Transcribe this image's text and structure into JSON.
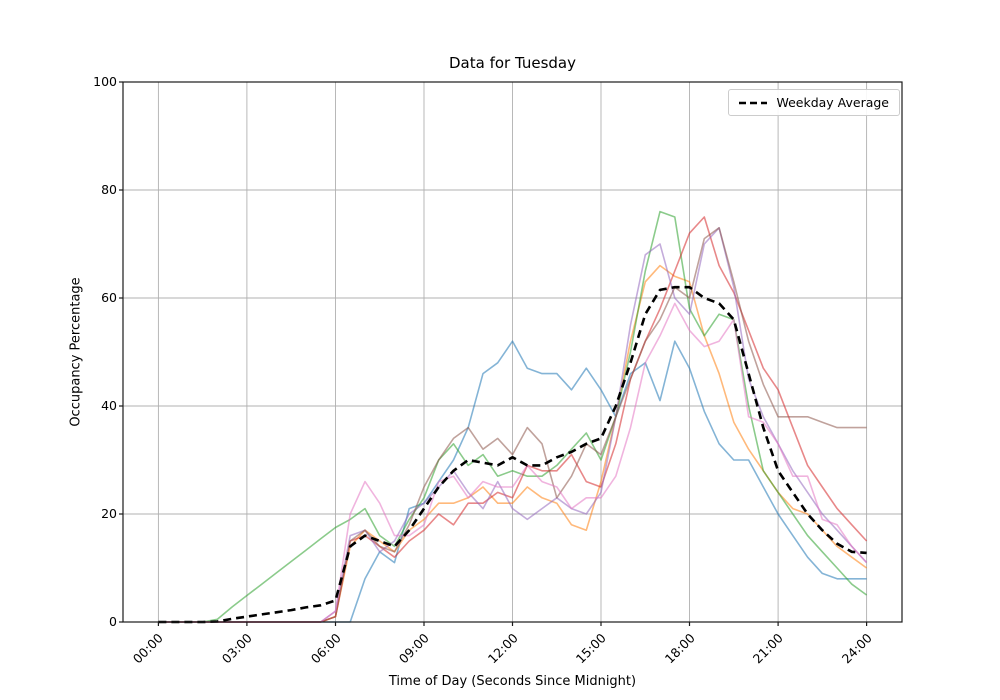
{
  "figure": {
    "title": "Data for Tuesday",
    "xlabel": "Time of Day (Seconds Since Midnight)",
    "ylabel": "Occupancy Percentage",
    "legend_label": "Weekday Average"
  },
  "colors": {
    "grid": "#b0b0b0",
    "spine": "#1a1a1a",
    "legend_border": "#cccccc",
    "average_line": "#000000"
  },
  "chart_data": {
    "type": "line",
    "title": "Data for Tuesday",
    "xlabel": "Time of Day (Seconds Since Midnight)",
    "ylabel": "Occupancy Percentage",
    "grid": true,
    "legend_position": "upper right",
    "legend_entries": [
      "Weekday Average"
    ],
    "ylim": [
      0,
      100
    ],
    "xlim_hours": [
      -1.2,
      25.2
    ],
    "y_ticks": [
      0,
      20,
      40,
      60,
      80,
      100
    ],
    "x_tick_hours": [
      0,
      3,
      6,
      9,
      12,
      15,
      18,
      21,
      24
    ],
    "x_tick_labels": [
      "00:00",
      "03:00",
      "06:00",
      "09:00",
      "12:00",
      "15:00",
      "18:00",
      "21:00",
      "24:00"
    ],
    "x_hours": [
      0,
      0.5,
      1,
      1.5,
      2,
      2.5,
      3,
      3.5,
      4,
      4.5,
      5,
      5.5,
      6,
      6.5,
      7,
      7.5,
      8,
      8.5,
      9,
      9.5,
      10,
      10.5,
      11,
      11.5,
      12,
      12.5,
      13,
      13.5,
      14,
      14.5,
      15,
      15.5,
      16,
      16.5,
      17,
      17.5,
      18,
      18.5,
      19,
      19.5,
      20,
      20.5,
      21,
      21.5,
      22,
      22.5,
      23,
      23.5,
      24
    ],
    "series": [
      {
        "name": "tuesday-line-blue",
        "color": "#1f77b4",
        "alpha": 0.55,
        "width": 1.6,
        "style": "solid",
        "values": [
          0,
          0,
          0,
          0,
          0,
          0,
          0,
          0,
          0,
          0,
          0,
          0,
          0,
          0,
          8,
          13,
          11,
          21,
          22,
          26,
          30,
          36,
          46,
          48,
          52,
          47,
          46,
          46,
          43,
          47,
          43,
          38,
          46,
          48,
          41,
          52,
          47,
          39,
          33,
          30,
          30,
          25,
          20,
          16,
          12,
          9,
          8,
          8,
          8
        ]
      },
      {
        "name": "tuesday-line-orange",
        "color": "#ff7f0e",
        "alpha": 0.55,
        "width": 1.6,
        "style": "solid",
        "values": [
          0,
          0,
          0,
          0,
          0,
          0,
          0,
          0,
          0,
          0,
          0,
          0,
          1,
          14,
          17,
          15,
          13,
          17,
          19,
          22,
          22,
          23,
          25,
          22,
          22,
          25,
          23,
          22,
          18,
          17,
          26,
          38,
          52,
          63,
          66,
          64,
          63,
          53,
          46,
          37,
          32,
          28,
          24,
          21,
          20,
          17,
          14,
          12,
          10
        ]
      },
      {
        "name": "tuesday-line-green",
        "color": "#2ca02c",
        "alpha": 0.55,
        "width": 1.6,
        "style": "solid",
        "values": [
          0,
          0,
          0,
          0,
          0.5,
          2.8,
          4.9,
          7,
          9.1,
          11.2,
          13.3,
          15.4,
          17.5,
          19,
          21,
          16,
          14,
          19,
          23,
          30,
          33,
          29,
          31,
          27,
          28,
          27,
          27,
          29,
          32,
          35,
          30,
          38,
          50,
          65,
          76,
          75,
          58,
          53,
          57,
          56,
          40,
          28,
          24,
          20,
          16,
          13,
          10,
          7,
          5
        ]
      },
      {
        "name": "tuesday-line-red",
        "color": "#d62728",
        "alpha": 0.55,
        "width": 1.6,
        "style": "solid",
        "values": [
          0,
          0,
          0,
          0,
          0,
          0,
          0,
          0,
          0,
          0,
          0,
          0,
          1,
          15,
          16,
          14,
          12,
          15,
          17,
          20,
          18,
          22,
          22,
          24,
          23,
          29,
          28,
          28,
          31,
          26,
          25,
          33,
          45,
          52,
          58,
          65,
          72,
          75,
          66,
          61,
          54,
          47,
          43,
          36,
          29,
          25,
          21,
          18,
          15
        ]
      },
      {
        "name": "tuesday-line-purple",
        "color": "#9467bd",
        "alpha": 0.55,
        "width": 1.6,
        "style": "solid",
        "values": [
          0,
          0,
          0,
          0,
          0,
          0,
          0,
          0,
          0,
          0,
          0,
          0,
          2,
          16,
          17,
          13,
          15,
          20,
          22,
          25,
          28,
          24,
          21,
          26,
          21,
          19,
          21,
          23,
          21,
          20,
          24,
          38,
          55,
          68,
          70,
          60,
          57,
          70,
          73,
          62,
          45,
          38,
          33,
          28,
          24,
          20,
          17,
          14,
          11
        ]
      },
      {
        "name": "tuesday-line-brown",
        "color": "#8c564b",
        "alpha": 0.55,
        "width": 1.6,
        "style": "solid",
        "values": [
          0,
          0,
          0,
          0,
          0,
          0,
          0,
          0,
          0,
          0,
          0,
          0,
          1,
          15,
          17,
          14,
          13,
          18,
          25,
          30,
          34,
          36,
          32,
          34,
          31,
          36,
          33,
          23,
          27,
          33,
          31,
          38,
          45,
          52,
          56,
          62,
          60,
          71,
          73,
          63,
          52,
          44,
          38,
          38,
          38,
          37,
          36,
          36,
          36
        ]
      },
      {
        "name": "tuesday-line-pink",
        "color": "#e377c2",
        "alpha": 0.55,
        "width": 1.6,
        "style": "solid",
        "values": [
          0,
          0,
          0,
          0,
          0,
          0,
          0,
          0,
          0,
          0,
          0,
          0,
          2,
          20,
          26,
          22,
          16,
          16,
          18,
          26,
          27,
          23,
          26,
          25,
          25,
          29,
          26,
          25,
          21,
          23,
          23,
          27,
          36,
          48,
          53,
          59,
          54,
          51,
          52,
          56,
          38,
          37,
          33,
          27,
          27,
          19,
          18,
          14,
          11
        ]
      },
      {
        "name": "Weekday Average",
        "color": "#000000",
        "alpha": 1,
        "width": 2.6,
        "style": "dashed",
        "values": [
          0,
          0,
          0,
          0,
          0.1,
          0.6,
          1,
          1.4,
          1.8,
          2.2,
          2.7,
          3.1,
          4,
          14,
          16,
          15,
          14,
          17,
          21,
          25,
          28,
          30,
          29.5,
          29,
          30.5,
          29,
          29,
          30.5,
          31.5,
          33,
          34,
          40,
          48,
          57,
          61.5,
          62,
          62,
          60,
          59,
          56,
          46,
          36,
          28,
          24,
          20,
          17,
          14.5,
          13,
          12.8
        ]
      }
    ]
  }
}
